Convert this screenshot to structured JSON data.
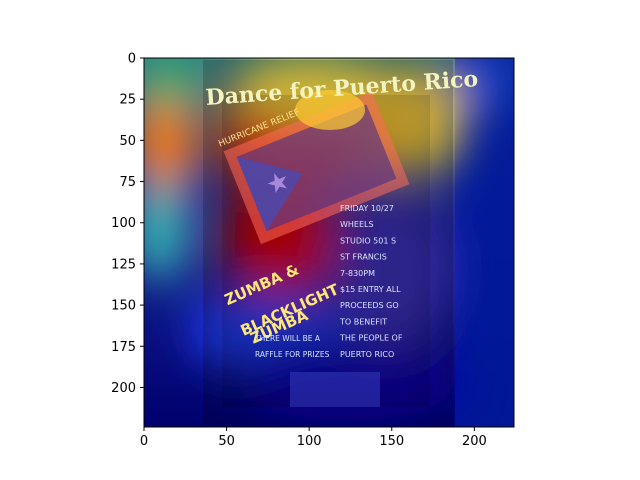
{
  "chart_data": {
    "type": "heatmap",
    "title": "",
    "xlabel": "",
    "ylabel": "",
    "xlim": [
      0,
      224
    ],
    "ylim": [
      224,
      0
    ],
    "x_ticks": [
      0,
      50,
      100,
      150,
      200
    ],
    "y_ticks": [
      0,
      25,
      50,
      75,
      100,
      125,
      150,
      175,
      200
    ],
    "colormap": "jet",
    "overlay": "attention heatmap over photo of an event poster",
    "grid": false,
    "legend": "none"
  },
  "poster": {
    "headline": "Dance for Puerto Rico",
    "subhead": "HURRICANE RELIEF",
    "event_title_lines": [
      "ZUMBA &",
      "BLACKLIGHT",
      "ZUMBA"
    ],
    "details": [
      "FRIDAY 10/27",
      "WHEELS",
      "STUDIO 501 S",
      "ST FRANCIS",
      "7-830PM",
      "$15 ENTRY ALL",
      "PROCEEDS GO",
      "TO BENEFIT",
      "THE PEOPLE OF",
      "PUERTO RICO"
    ],
    "raffle": [
      "THERE WILL BE A",
      "RAFFLE FOR PRIZES"
    ]
  },
  "colors": {
    "hot": "#c80000",
    "warm": "#ffd23c",
    "mid": "#3cc8b4",
    "cool": "#1e2896",
    "cold": "#00006e"
  }
}
